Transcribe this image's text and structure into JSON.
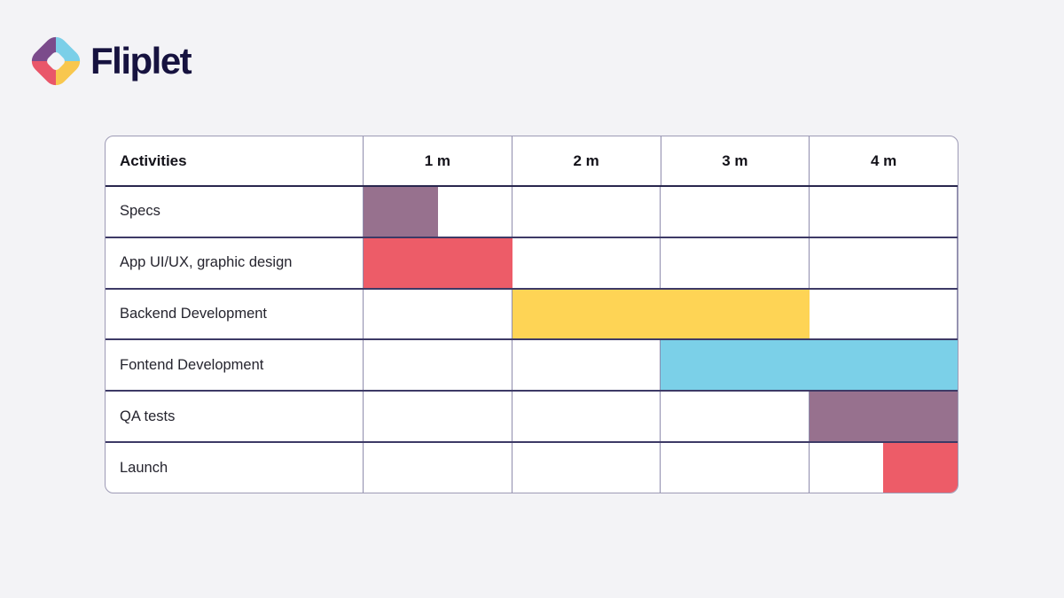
{
  "page": {
    "background": "#F3F3F6"
  },
  "logo": {
    "text": "Fliplet",
    "text_color": "#16123F",
    "mark": {
      "upper_left": "#7B4B8B",
      "upper_right": "#7BCFE8",
      "lower_left": "#E9566A",
      "lower_right": "#F8C74E"
    }
  },
  "chart_data": {
    "type": "bar",
    "subtype": "gantt",
    "title": "",
    "columns": [
      "Activities",
      "1 m",
      "2 m",
      "3 m",
      "4 m"
    ],
    "x_unit": "months",
    "xlim": [
      0,
      4
    ],
    "grid": true,
    "tasks": [
      {
        "label": "Specs",
        "start": 0,
        "duration": 0.5,
        "color": "#97718E"
      },
      {
        "label": "App UI/UX, graphic design",
        "start": 0,
        "duration": 1,
        "color": "#ED5C68"
      },
      {
        "label": "Backend Development",
        "start": 1,
        "duration": 2,
        "color": "#FED455"
      },
      {
        "label": "Fontend Development",
        "start": 2,
        "duration": 2,
        "color": "#7BD0E8"
      },
      {
        "label": "QA tests",
        "start": 3,
        "duration": 1,
        "color": "#97718E"
      },
      {
        "label": "Launch",
        "start": 3.5,
        "duration": 0.5,
        "color": "#ED5C68"
      }
    ],
    "palette": {
      "purple": "#97718E",
      "red": "#ED5C68",
      "yellow": "#FED455",
      "blue": "#7BD0E8"
    }
  }
}
